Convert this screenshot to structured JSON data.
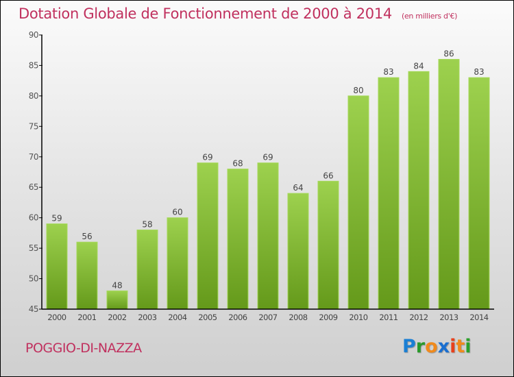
{
  "chart_data": {
    "type": "bar",
    "title": "Dotation Globale de Fonctionnement de 2000 à 2014",
    "subtitle": "(en milliers d'€)",
    "xlabel": "",
    "ylabel": "",
    "categories": [
      "2000",
      "2001",
      "2002",
      "2003",
      "2004",
      "2005",
      "2006",
      "2007",
      "2008",
      "2009",
      "2010",
      "2011",
      "2012",
      "2013",
      "2014"
    ],
    "values": [
      59,
      56,
      48,
      58,
      60,
      69,
      68,
      69,
      64,
      66,
      80,
      83,
      84,
      86,
      83
    ],
    "ylim": [
      45,
      90
    ],
    "yticks": [
      45,
      50,
      55,
      60,
      65,
      70,
      75,
      80,
      85,
      90
    ],
    "grid": false,
    "legend": "none",
    "bar_color_top": "#9dd14e",
    "bar_color_bottom": "#64991a"
  },
  "footer": {
    "commune": "POGGIO-DI-NAZZA",
    "logo_letters": [
      {
        "char": "P",
        "color": "#1a7fd4"
      },
      {
        "char": "r",
        "color": "#2a9a2a"
      },
      {
        "char": "o",
        "color": "#f08a1c"
      },
      {
        "char": "x",
        "color": "#1a6fd0"
      },
      {
        "char": "i",
        "color": "#e8401c"
      },
      {
        "char": "t",
        "color": "#f08a1c"
      },
      {
        "char": "i",
        "color": "#2aa02a"
      }
    ]
  },
  "colors": {
    "title": "#c0305e",
    "axis": "#000000",
    "tick_label": "#444444"
  }
}
